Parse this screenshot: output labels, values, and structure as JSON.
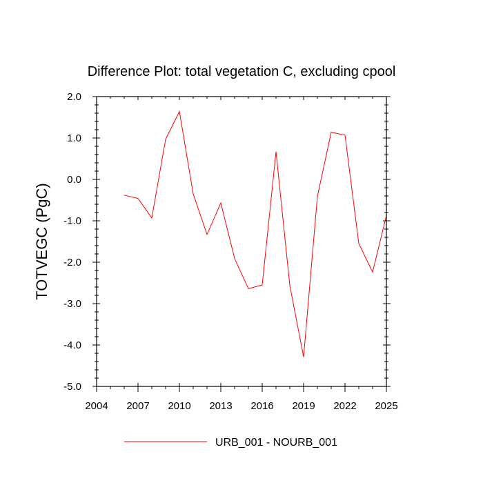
{
  "chart_data": {
    "type": "line",
    "title": "Difference Plot: total vegetation C, excluding cpool",
    "xlabel": "",
    "ylabel": "TOTVEGC  (PgC)",
    "xlim": [
      2004,
      2025
    ],
    "ylim": [
      -5.0,
      2.0
    ],
    "xticks": [
      2004,
      2007,
      2010,
      2013,
      2016,
      2019,
      2022,
      2025
    ],
    "xtick_labels": [
      "2004",
      "2007",
      "2010",
      "2013",
      "2016",
      "2019",
      "2022",
      "2025"
    ],
    "yticks": [
      2.0,
      1.0,
      0.0,
      -1.0,
      -2.0,
      -3.0,
      -4.0,
      -5.0
    ],
    "ytick_labels": [
      "2.0",
      "1.0",
      "0.0",
      "-1.0",
      "-2.0",
      "-3.0",
      "-4.0",
      "-5.0"
    ],
    "grid": false,
    "legend_position": "bottom-center",
    "series": [
      {
        "name": "URB_001 - NOURB_001",
        "color": "#ff0000",
        "x": [
          2006,
          2007,
          2008,
          2009,
          2010,
          2011,
          2012,
          2013,
          2014,
          2015,
          2016,
          2017,
          2018,
          2019,
          2020,
          2021,
          2022,
          2023,
          2024,
          2025
        ],
        "values": [
          -0.38,
          -0.46,
          -0.93,
          0.97,
          1.64,
          -0.35,
          -1.33,
          -0.57,
          -1.91,
          -2.64,
          -2.55,
          0.67,
          -2.56,
          -4.29,
          -0.41,
          1.14,
          1.07,
          -1.55,
          -2.24,
          -0.87
        ]
      }
    ]
  }
}
